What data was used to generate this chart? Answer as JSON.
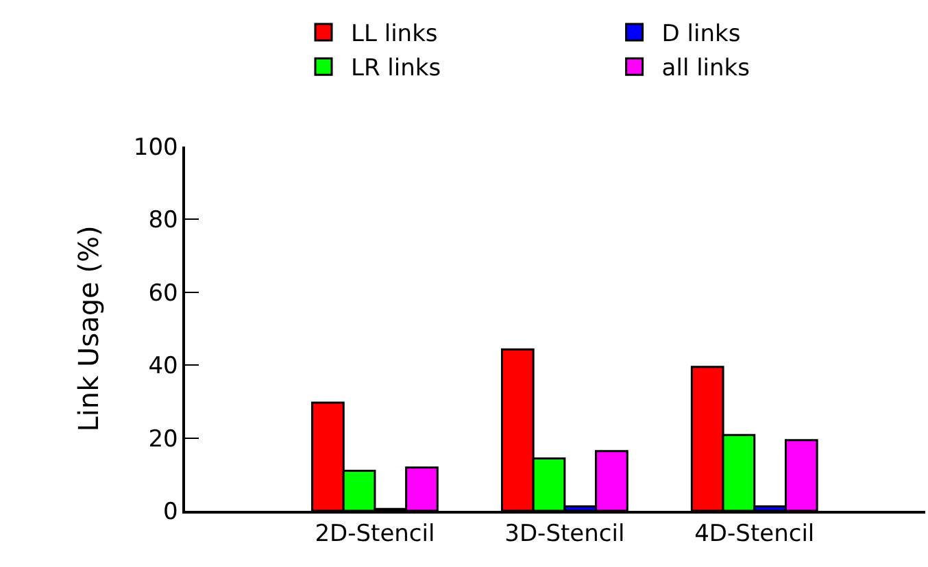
{
  "chart_data": {
    "type": "bar",
    "ylabel": "Link Usage (%)",
    "categories": [
      "2D-Stencil",
      "3D-Stencil",
      "4D-Stencil"
    ],
    "series": [
      {
        "name": "LL links",
        "color": "#ff0000",
        "values": [
          29.7,
          44.3,
          39.5
        ]
      },
      {
        "name": "LR links",
        "color": "#00ff00",
        "values": [
          11.0,
          14.4,
          20.8
        ]
      },
      {
        "name": "D links",
        "color": "#0000ff",
        "values": [
          0.5,
          1.2,
          1.2
        ]
      },
      {
        "name": "all links",
        "color": "#ff00ff",
        "values": [
          11.9,
          16.4,
          19.4
        ]
      }
    ],
    "ylim": [
      0,
      100
    ],
    "yticks": [
      0,
      20,
      40,
      60,
      80,
      100
    ],
    "grid": false,
    "legend": "top right"
  }
}
